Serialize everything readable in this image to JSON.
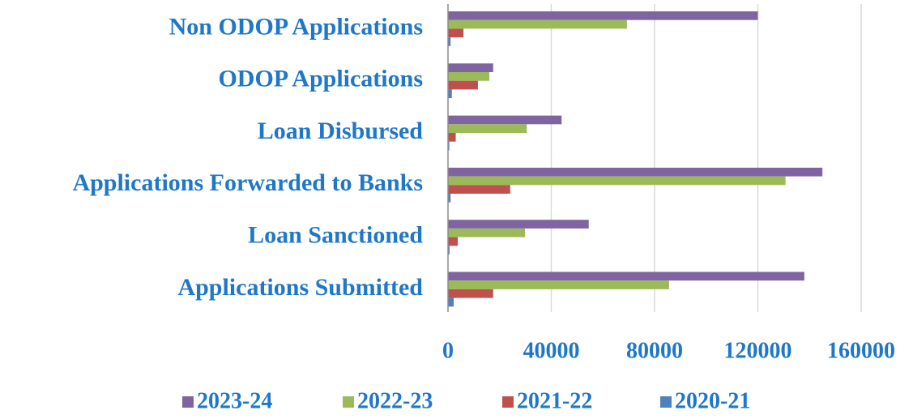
{
  "chart_data": {
    "type": "barh",
    "categories": [
      "Non ODOP Applications",
      "ODOP Applications",
      "Loan Disbursed",
      "Applications Forwarded to Banks",
      "Loan Sanctioned",
      "Applications Submitted"
    ],
    "series": [
      {
        "name": "2023-24",
        "color": "#8064a2",
        "values": [
          120000,
          17500,
          44000,
          145000,
          54500,
          138000
        ]
      },
      {
        "name": "2022-23",
        "color": "#9bbb59",
        "values": [
          69300,
          16000,
          30500,
          130700,
          29800,
          85600
        ]
      },
      {
        "name": "2021-22",
        "color": "#c0504d",
        "values": [
          6000,
          11600,
          3000,
          24100,
          3800,
          17500
        ]
      },
      {
        "name": "2020-21",
        "color": "#4f81bd",
        "values": [
          1000,
          1500,
          500,
          1000,
          600,
          2200
        ]
      }
    ],
    "xlim": [
      0,
      160000
    ],
    "xticks": [
      0,
      40000,
      80000,
      120000,
      160000
    ],
    "grid": true,
    "legend": "bottom"
  }
}
